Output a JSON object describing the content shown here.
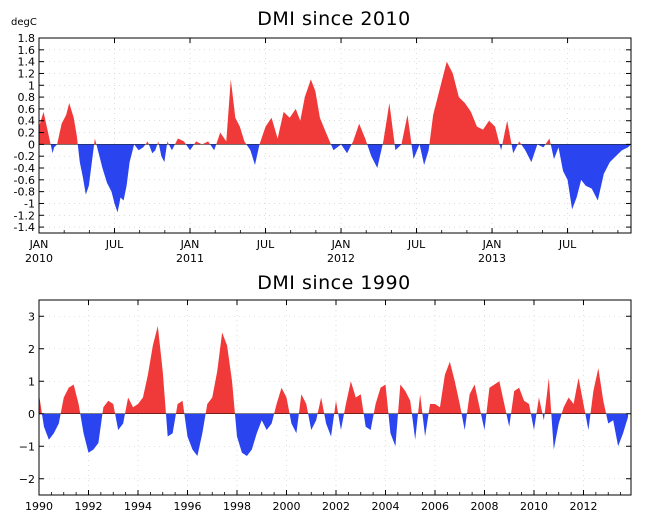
{
  "chart_data": [
    {
      "type": "area",
      "title": "DMI since 2010",
      "ylabel": "degC",
      "xlabel": "",
      "ylim": [
        -1.5,
        1.8
      ],
      "yticks": [
        {
          "value": 1.8,
          "label": "1.8"
        },
        {
          "value": 1.6,
          "label": "1.6"
        },
        {
          "value": 1.4,
          "label": "1.4"
        },
        {
          "value": 1.2,
          "label": "1.2"
        },
        {
          "value": 1.0,
          "label": "1"
        },
        {
          "value": 0.8,
          "label": "0.8"
        },
        {
          "value": 0.6,
          "label": "0.6"
        },
        {
          "value": 0.4,
          "label": "0.4"
        },
        {
          "value": 0.2,
          "label": "0.2"
        },
        {
          "value": 0.0,
          "label": "0"
        },
        {
          "value": -0.2,
          "label": "-0.2"
        },
        {
          "value": -0.4,
          "label": "-0.4"
        },
        {
          "value": -0.6,
          "label": "-0.6"
        },
        {
          "value": -0.8,
          "label": "-0.8"
        },
        {
          "value": -1.0,
          "label": "-1"
        },
        {
          "value": -1.2,
          "label": "-1.2"
        },
        {
          "value": -1.4,
          "label": "-1.4"
        }
      ],
      "xlim": [
        2010.0,
        2013.92
      ],
      "xticks": [
        {
          "value": 2010.0,
          "label": "JAN",
          "sub": "2010"
        },
        {
          "value": 2010.5,
          "label": "JUL",
          "sub": ""
        },
        {
          "value": 2011.0,
          "label": "JAN",
          "sub": "2011"
        },
        {
          "value": 2011.5,
          "label": "JUL",
          "sub": ""
        },
        {
          "value": 2012.0,
          "label": "JAN",
          "sub": "2012"
        },
        {
          "value": 2012.5,
          "label": "JUL",
          "sub": ""
        },
        {
          "value": 2013.0,
          "label": "JAN",
          "sub": "2013"
        },
        {
          "value": 2013.5,
          "label": "JUL",
          "sub": ""
        }
      ],
      "grid": true,
      "positive_color": "#f03a3a",
      "negative_color": "#2a45f0",
      "x": [
        2010.0,
        2010.03,
        2010.06,
        2010.09,
        2010.1,
        2010.12,
        2010.15,
        2010.18,
        2010.2,
        2010.23,
        2010.25,
        2010.27,
        2010.29,
        2010.31,
        2010.33,
        2010.35,
        2010.37,
        2010.4,
        2010.42,
        2010.45,
        2010.48,
        2010.5,
        2010.52,
        2010.54,
        2010.56,
        2010.58,
        2010.6,
        2010.63,
        2010.66,
        2010.69,
        2010.72,
        2010.75,
        2010.77,
        2010.79,
        2010.81,
        2010.83,
        2010.85,
        2010.88,
        2010.92,
        2010.96,
        2011.0,
        2011.04,
        2011.08,
        2011.12,
        2011.16,
        2011.2,
        2011.24,
        2011.27,
        2011.3,
        2011.33,
        2011.36,
        2011.4,
        2011.43,
        2011.46,
        2011.5,
        2011.54,
        2011.58,
        2011.62,
        2011.66,
        2011.7,
        2011.73,
        2011.76,
        2011.8,
        2011.83,
        2011.86,
        2011.9,
        2011.95,
        2012.0,
        2012.04,
        2012.08,
        2012.12,
        2012.16,
        2012.2,
        2012.24,
        2012.28,
        2012.32,
        2012.36,
        2012.4,
        2012.44,
        2012.48,
        2012.52,
        2012.55,
        2012.58,
        2012.61,
        2012.64,
        2012.67,
        2012.7,
        2012.74,
        2012.78,
        2012.82,
        2012.86,
        2012.9,
        2012.94,
        2012.98,
        2013.02,
        2013.06,
        2013.1,
        2013.14,
        2013.18,
        2013.22,
        2013.26,
        2013.3,
        2013.34,
        2013.38,
        2013.41,
        2013.44,
        2013.47,
        2013.5,
        2013.53,
        2013.56,
        2013.59,
        2013.62,
        2013.66,
        2013.7,
        2013.74,
        2013.78,
        2013.82,
        2013.86,
        2013.9,
        2013.92
      ],
      "values": [
        0.3,
        0.55,
        0.2,
        -0.15,
        -0.05,
        0.0,
        0.35,
        0.5,
        0.7,
        0.45,
        0.15,
        -0.3,
        -0.55,
        -0.85,
        -0.7,
        -0.3,
        0.1,
        -0.2,
        -0.4,
        -0.65,
        -0.8,
        -1.0,
        -1.15,
        -0.9,
        -0.95,
        -0.7,
        -0.3,
        0.0,
        -0.1,
        -0.05,
        0.05,
        -0.15,
        -0.1,
        0.05,
        -0.2,
        -0.3,
        0.05,
        -0.1,
        0.1,
        0.05,
        -0.1,
        0.05,
        0.0,
        0.05,
        -0.1,
        0.2,
        0.05,
        1.1,
        0.45,
        0.3,
        0.05,
        -0.1,
        -0.35,
        0.0,
        0.3,
        0.45,
        0.1,
        0.55,
        0.45,
        0.6,
        0.4,
        0.8,
        1.1,
        0.9,
        0.45,
        0.2,
        -0.1,
        0.0,
        -0.15,
        0.05,
        0.35,
        0.1,
        -0.2,
        -0.4,
        0.05,
        0.7,
        -0.1,
        0.0,
        0.5,
        -0.25,
        0.0,
        -0.35,
        -0.1,
        0.5,
        0.8,
        1.1,
        1.4,
        1.2,
        0.8,
        0.7,
        0.55,
        0.3,
        0.25,
        0.4,
        0.3,
        -0.1,
        0.4,
        -0.15,
        0.05,
        -0.1,
        -0.3,
        0.0,
        -0.05,
        0.1,
        -0.25,
        -0.05,
        -0.45,
        -0.6,
        -1.1,
        -0.9,
        -0.6,
        -0.7,
        -0.75,
        -0.95,
        -0.5,
        -0.3,
        -0.2,
        -0.1,
        -0.05,
        0.0
      ],
      "plot_note": ""
    },
    {
      "type": "area",
      "title": "DMI since 1990",
      "xlabel": "",
      "ylabel": "",
      "ylim": [
        -2.5,
        3.5
      ],
      "yticks": [
        {
          "value": 3,
          "label": "3"
        },
        {
          "value": 2,
          "label": "2"
        },
        {
          "value": 1,
          "label": "1"
        },
        {
          "value": 0,
          "label": "0"
        },
        {
          "value": -1,
          "label": "−1"
        },
        {
          "value": -2,
          "label": "−2"
        }
      ],
      "xlim": [
        1990.0,
        2013.92
      ],
      "xticks": [
        {
          "value": 1990,
          "label": "1990"
        },
        {
          "value": 1992,
          "label": "1992"
        },
        {
          "value": 1994,
          "label": "1994"
        },
        {
          "value": 1996,
          "label": "1996"
        },
        {
          "value": 1998,
          "label": "1998"
        },
        {
          "value": 2000,
          "label": "2000"
        },
        {
          "value": 2002,
          "label": "2002"
        },
        {
          "value": 2004,
          "label": "2004"
        },
        {
          "value": 2006,
          "label": "2006"
        },
        {
          "value": 2008,
          "label": "2008"
        },
        {
          "value": 2010,
          "label": "2010"
        },
        {
          "value": 2012,
          "label": "2012"
        }
      ],
      "grid": true,
      "positive_color": "#f03a3a",
      "negative_color": "#2a45f0",
      "x": [
        1990.0,
        1990.2,
        1990.4,
        1990.6,
        1990.8,
        1991.0,
        1991.2,
        1991.4,
        1991.6,
        1991.8,
        1992.0,
        1992.2,
        1992.4,
        1992.6,
        1992.8,
        1993.0,
        1993.2,
        1993.4,
        1993.6,
        1993.8,
        1994.0,
        1994.2,
        1994.4,
        1994.6,
        1994.8,
        1995.0,
        1995.2,
        1995.4,
        1995.6,
        1995.8,
        1996.0,
        1996.2,
        1996.4,
        1996.6,
        1996.8,
        1997.0,
        1997.2,
        1997.4,
        1997.6,
        1997.8,
        1998.0,
        1998.2,
        1998.4,
        1998.6,
        1998.8,
        1999.0,
        1999.2,
        1999.4,
        1999.6,
        1999.8,
        2000.0,
        2000.2,
        2000.4,
        2000.6,
        2000.8,
        2001.0,
        2001.2,
        2001.4,
        2001.6,
        2001.8,
        2002.0,
        2002.2,
        2002.4,
        2002.6,
        2002.8,
        2003.0,
        2003.2,
        2003.4,
        2003.6,
        2003.8,
        2004.0,
        2004.2,
        2004.4,
        2004.6,
        2004.8,
        2005.0,
        2005.2,
        2005.4,
        2005.6,
        2005.8,
        2006.0,
        2006.2,
        2006.4,
        2006.6,
        2006.8,
        2007.0,
        2007.2,
        2007.4,
        2007.6,
        2007.8,
        2008.0,
        2008.2,
        2008.4,
        2008.6,
        2008.8,
        2009.0,
        2009.2,
        2009.4,
        2009.6,
        2009.8,
        2010.0,
        2010.2,
        2010.4,
        2010.6,
        2010.8,
        2011.0,
        2011.2,
        2011.4,
        2011.6,
        2011.8,
        2012.0,
        2012.2,
        2012.4,
        2012.6,
        2012.8,
        2013.0,
        2013.2,
        2013.4,
        2013.6,
        2013.8
      ],
      "values": [
        0.6,
        -0.4,
        -0.8,
        -0.6,
        -0.3,
        0.5,
        0.8,
        0.9,
        0.3,
        -0.6,
        -1.2,
        -1.1,
        -0.9,
        0.2,
        0.4,
        0.3,
        -0.5,
        -0.3,
        0.5,
        0.2,
        0.3,
        0.5,
        1.2,
        2.1,
        2.7,
        1.3,
        -0.7,
        -0.6,
        0.3,
        0.4,
        -0.7,
        -1.1,
        -1.3,
        -0.6,
        0.3,
        0.5,
        1.3,
        2.5,
        2.1,
        1.0,
        -0.7,
        -1.2,
        -1.3,
        -1.1,
        -0.6,
        -0.2,
        -0.5,
        -0.3,
        0.3,
        0.8,
        0.5,
        -0.3,
        -0.6,
        0.6,
        0.3,
        -0.5,
        -0.2,
        0.5,
        -0.3,
        -0.7,
        0.4,
        -0.5,
        0.3,
        1.0,
        0.5,
        0.6,
        -0.4,
        -0.5,
        0.3,
        0.8,
        0.9,
        -0.6,
        -1.0,
        0.9,
        0.7,
        0.4,
        -0.8,
        0.6,
        -0.7,
        0.3,
        0.3,
        0.2,
        1.2,
        1.6,
        1.0,
        0.3,
        -0.5,
        0.6,
        0.9,
        0.2,
        -0.5,
        0.8,
        0.9,
        1.0,
        0.3,
        -0.4,
        0.7,
        0.8,
        0.4,
        0.3,
        -0.5,
        0.5,
        -0.2,
        1.1,
        -1.1,
        -0.3,
        0.2,
        0.5,
        0.3,
        1.1,
        0.3,
        -0.5,
        0.7,
        1.4,
        0.4,
        -0.3,
        -0.2,
        -1.0,
        -0.6,
        -0.1
      ],
      "plot_note": ""
    }
  ]
}
